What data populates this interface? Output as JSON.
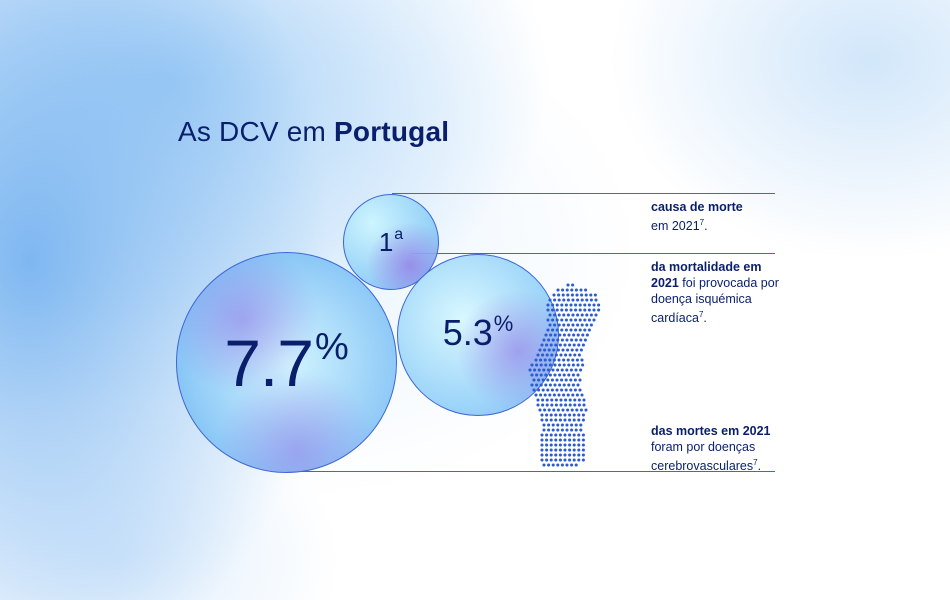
{
  "title": {
    "regular": "As DCV em ",
    "bold": "Portugal"
  },
  "bubbles": {
    "rank": {
      "value": "1",
      "suffix": "a"
    },
    "percent_a": {
      "value": "7.7",
      "suffix": "%"
    },
    "percent_b": {
      "value": "5.3",
      "suffix": "%"
    }
  },
  "stats": [
    {
      "bold": "causa de morte",
      "rest": "em 2021",
      "ref": "7",
      "tail": "."
    },
    {
      "bold": "da mortalidade em 2021",
      "rest": " foi provocada por doença isquémica cardíaca",
      "ref": "7",
      "tail": "."
    },
    {
      "bold": "das mortes em 2021",
      "rest": " foram por doenças cerebrovasculares",
      "ref": "7",
      "tail": "."
    }
  ],
  "map": {
    "name": "portugal-dot-map-icon",
    "dot_color": "#2d5bd0"
  },
  "colors": {
    "primary": "#0a1f6b",
    "accent": "#3f66d6"
  }
}
